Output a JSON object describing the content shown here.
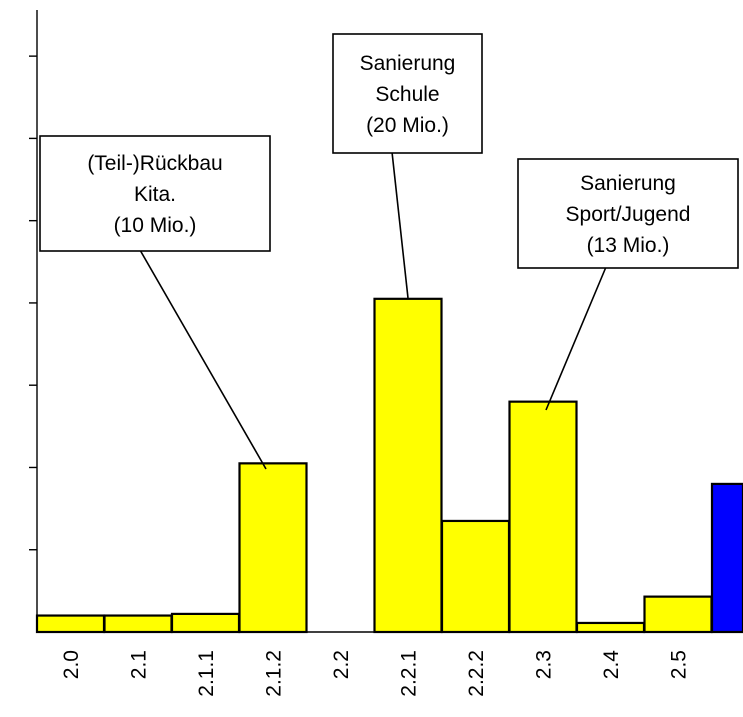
{
  "chart_data": {
    "type": "bar",
    "categories": [
      "2.0",
      "2.1",
      "2.1.1",
      "2.1.2",
      "2.2",
      "2.2.1",
      "2.2.2",
      "2.3",
      "2.4",
      "2.5",
      ""
    ],
    "values": [
      0.2,
      0.2,
      0.22,
      2.05,
      0,
      4.05,
      1.35,
      2.8,
      0.11,
      0.43,
      1.8
    ],
    "ylim": [
      0,
      7.5
    ],
    "colors": {
      "default_bar": "#ffff00",
      "highlight_bar": "#0000ff",
      "edge": "#000000"
    },
    "bar_colors": [
      "#ffff00",
      "#ffff00",
      "#ffff00",
      "#ffff00",
      "#ffff00",
      "#ffff00",
      "#ffff00",
      "#ffff00",
      "#ffff00",
      "#ffff00",
      "#0000ff"
    ],
    "grid": false,
    "annotations": [
      {
        "target": "2.1.2",
        "lines": [
          "(Teil-)Rückbau",
          "Kita.",
          "(10 Mio.)"
        ]
      },
      {
        "target": "2.2.1",
        "lines": [
          "Sanierung",
          "Schule",
          "(20 Mio.)"
        ]
      },
      {
        "target": "2.3",
        "lines": [
          "Sanierung",
          "Sport/Jugend",
          "(13 Mio.)"
        ]
      }
    ]
  }
}
